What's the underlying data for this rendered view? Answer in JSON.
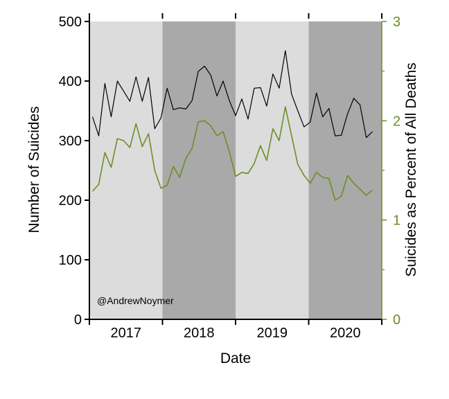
{
  "chart_data": {
    "type": "line",
    "title": "",
    "xlabel": "Date",
    "ylabel": "Number of Suicides",
    "ylabel_right": "Suicides as Percent of All Deaths",
    "credit": "@AndrewNoymer",
    "ylim": [
      0,
      500
    ],
    "ylim_right": [
      0,
      3
    ],
    "y_ticks": [
      0,
      100,
      200,
      300,
      400,
      500
    ],
    "y_ticks_right": [
      0,
      1,
      2,
      3
    ],
    "y_ticks_right_minor": [
      0.5,
      1.5,
      2.5
    ],
    "years": [
      "2017",
      "2018",
      "2019",
      "2020"
    ],
    "year_bands": [
      "light",
      "dark",
      "light",
      "dark"
    ],
    "grid": false,
    "colors": {
      "suicides": "#000000",
      "percent": "#6b8e23",
      "band_light": "#dcdcdc",
      "band_dark": "#a9a9a9"
    },
    "x_months": 47,
    "series": [
      {
        "name": "Number of Suicides",
        "axis": "left",
        "values": [
          340,
          308,
          396,
          340,
          400,
          383,
          366,
          407,
          366,
          406,
          320,
          338,
          388,
          352,
          355,
          353,
          367,
          416,
          425,
          410,
          375,
          400,
          367,
          342,
          370,
          336,
          388,
          389,
          358,
          412,
          388,
          451,
          378,
          350,
          323,
          331,
          380,
          340,
          354,
          308,
          309,
          345,
          371,
          360,
          305,
          315
        ]
      },
      {
        "name": "Suicides as Percent of All Deaths",
        "axis": "right",
        "values": [
          1.29,
          1.36,
          1.68,
          1.53,
          1.82,
          1.8,
          1.73,
          1.97,
          1.74,
          1.87,
          1.5,
          1.32,
          1.35,
          1.54,
          1.43,
          1.62,
          1.72,
          1.99,
          2.0,
          1.95,
          1.85,
          1.89,
          1.69,
          1.44,
          1.48,
          1.47,
          1.57,
          1.75,
          1.6,
          1.92,
          1.8,
          2.14,
          1.85,
          1.56,
          1.45,
          1.37,
          1.48,
          1.43,
          1.42,
          1.2,
          1.24,
          1.45,
          1.37,
          1.31,
          1.25,
          1.3
        ]
      }
    ]
  }
}
